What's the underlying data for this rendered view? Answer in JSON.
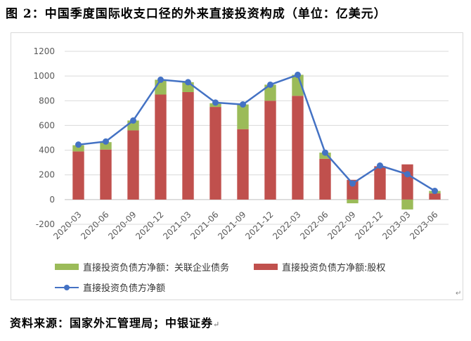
{
  "figure": {
    "title": "图 2：中国季度国际收支口径的外来直接投资构成（单位：亿美元）",
    "source": "资料来源：国家外汇管理局；中银证券"
  },
  "colors": {
    "affiliate_debt": "#9bbb59",
    "equity": "#c0504d",
    "total_line": "#4472c4",
    "grid": "#d9d9d9",
    "axis_text": "#595959"
  },
  "chart_data": {
    "type": "bar",
    "stacked": true,
    "categories": [
      "2020-03",
      "2020-06",
      "2020-09",
      "2020-12",
      "2021-03",
      "2021-06",
      "2021-09",
      "2021-12",
      "2022-03",
      "2022-06",
      "2022-09",
      "2022-12",
      "2023-03",
      "2023-06"
    ],
    "series": [
      {
        "name": "直接投资负债方净额：关联企业债务",
        "kind": "bar",
        "values": [
          50,
          60,
          80,
          120,
          80,
          30,
          200,
          130,
          170,
          50,
          -30,
          0,
          -80,
          20
        ]
      },
      {
        "name": "直接投资负债方净额:股权",
        "kind": "bar",
        "values": [
          390,
          405,
          560,
          850,
          870,
          750,
          570,
          800,
          840,
          330,
          160,
          270,
          285,
          50
        ]
      },
      {
        "name": "直接投资负债方净额",
        "kind": "line",
        "values": [
          445,
          470,
          640,
          970,
          950,
          785,
          770,
          930,
          1010,
          380,
          130,
          275,
          205,
          70
        ]
      }
    ],
    "ylim": [
      -200,
      1200
    ],
    "yticks": [
      -200,
      0,
      200,
      400,
      600,
      800,
      1000,
      1200
    ],
    "grid": true,
    "legend": "bottom",
    "xlabel": "",
    "ylabel": ""
  }
}
